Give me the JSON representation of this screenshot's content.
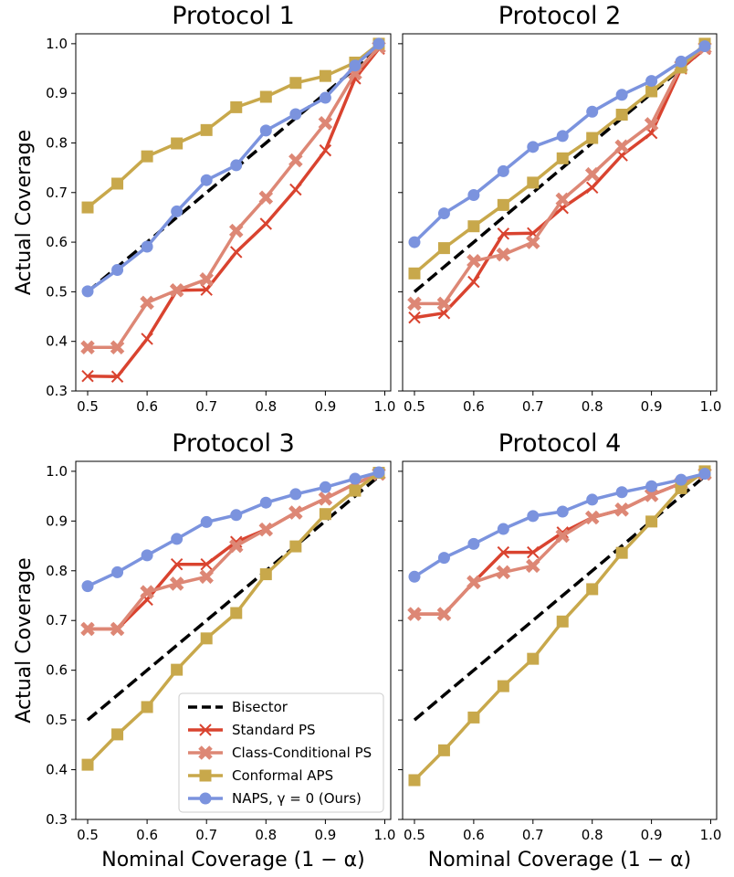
{
  "chart_data": [
    {
      "type": "line",
      "title": "Protocol 1",
      "x": [
        0.5,
        0.55,
        0.6,
        0.65,
        0.7,
        0.75,
        0.8,
        0.85,
        0.9,
        0.95,
        0.99
      ],
      "xlim": [
        0.48,
        1.01
      ],
      "ylim": [
        0.3,
        1.02
      ],
      "xticks": [
        "0.5",
        "0.6",
        "0.7",
        "0.8",
        "0.9",
        "1.0"
      ],
      "yticks": [
        "0.3",
        "0.4",
        "0.5",
        "0.6",
        "0.7",
        "0.8",
        "0.9",
        "1.0"
      ],
      "xlabel": "",
      "ylabel": "Actual Coverage",
      "series": [
        {
          "key": "bisector",
          "values": [
            0.5,
            0.55,
            0.6,
            0.65,
            0.7,
            0.75,
            0.8,
            0.85,
            0.9,
            0.95,
            0.99
          ]
        },
        {
          "key": "standard",
          "values": [
            0.33,
            0.329,
            0.405,
            0.503,
            0.504,
            0.58,
            0.637,
            0.706,
            0.785,
            0.93,
            0.99
          ]
        },
        {
          "key": "classcond",
          "values": [
            0.388,
            0.388,
            0.478,
            0.503,
            0.525,
            0.623,
            0.69,
            0.765,
            0.84,
            0.94,
            0.993
          ]
        },
        {
          "key": "aps",
          "values": [
            0.67,
            0.718,
            0.773,
            0.799,
            0.826,
            0.872,
            0.893,
            0.921,
            0.935,
            0.962,
            1.0
          ]
        },
        {
          "key": "naps",
          "values": [
            0.501,
            0.544,
            0.591,
            0.662,
            0.725,
            0.755,
            0.825,
            0.858,
            0.891,
            0.956,
            1.0
          ]
        }
      ]
    },
    {
      "type": "line",
      "title": "Protocol 2",
      "x": [
        0.5,
        0.55,
        0.6,
        0.65,
        0.7,
        0.75,
        0.8,
        0.85,
        0.9,
        0.95,
        0.99
      ],
      "xlim": [
        0.48,
        1.01
      ],
      "ylim": [
        0.3,
        1.02
      ],
      "xticks": [
        "0.5",
        "0.6",
        "0.7",
        "0.8",
        "0.9",
        "1.0"
      ],
      "yticks": [],
      "xlabel": "",
      "ylabel": "",
      "series": [
        {
          "key": "bisector",
          "values": [
            0.5,
            0.55,
            0.6,
            0.65,
            0.7,
            0.75,
            0.8,
            0.85,
            0.9,
            0.95,
            0.99
          ]
        },
        {
          "key": "standard",
          "values": [
            0.448,
            0.457,
            0.52,
            0.617,
            0.618,
            0.669,
            0.71,
            0.775,
            0.82,
            0.95,
            0.99
          ]
        },
        {
          "key": "classcond",
          "values": [
            0.476,
            0.476,
            0.562,
            0.575,
            0.6,
            0.686,
            0.737,
            0.793,
            0.838,
            0.955,
            0.992
          ]
        },
        {
          "key": "aps",
          "values": [
            0.537,
            0.588,
            0.632,
            0.675,
            0.72,
            0.769,
            0.81,
            0.857,
            0.904,
            0.952,
            1.0
          ]
        },
        {
          "key": "naps",
          "values": [
            0.6,
            0.658,
            0.695,
            0.743,
            0.792,
            0.814,
            0.863,
            0.897,
            0.925,
            0.964,
            0.995
          ]
        }
      ]
    },
    {
      "type": "line",
      "title": "Protocol 3",
      "x": [
        0.5,
        0.55,
        0.6,
        0.65,
        0.7,
        0.75,
        0.8,
        0.85,
        0.9,
        0.95,
        0.99
      ],
      "xlim": [
        0.48,
        1.01
      ],
      "ylim": [
        0.3,
        1.02
      ],
      "xticks": [
        "0.5",
        "0.6",
        "0.7",
        "0.8",
        "0.9",
        "1.0"
      ],
      "yticks": [
        "0.3",
        "0.4",
        "0.5",
        "0.6",
        "0.7",
        "0.8",
        "0.9",
        "1.0"
      ],
      "xlabel": "Nominal Coverage (1 − α)",
      "ylabel": "Actual Coverage",
      "series": [
        {
          "key": "bisector",
          "values": [
            0.5,
            0.55,
            0.6,
            0.65,
            0.7,
            0.75,
            0.8,
            0.85,
            0.9,
            0.95,
            0.99
          ]
        },
        {
          "key": "standard",
          "values": [
            0.683,
            0.683,
            0.742,
            0.813,
            0.813,
            0.858,
            0.883,
            0.917,
            0.945,
            0.975,
            0.995
          ]
        },
        {
          "key": "classcond",
          "values": [
            0.683,
            0.683,
            0.757,
            0.774,
            0.788,
            0.85,
            0.883,
            0.917,
            0.945,
            0.975,
            0.995
          ]
        },
        {
          "key": "aps",
          "values": [
            0.41,
            0.471,
            0.526,
            0.601,
            0.664,
            0.715,
            0.793,
            0.849,
            0.914,
            0.961,
            0.997
          ]
        },
        {
          "key": "naps",
          "values": [
            0.769,
            0.797,
            0.831,
            0.864,
            0.898,
            0.912,
            0.937,
            0.954,
            0.968,
            0.985,
            0.998
          ]
        }
      ]
    },
    {
      "type": "line",
      "title": "Protocol 4",
      "x": [
        0.5,
        0.55,
        0.6,
        0.65,
        0.7,
        0.75,
        0.8,
        0.85,
        0.9,
        0.95,
        0.99
      ],
      "xlim": [
        0.48,
        1.01
      ],
      "ylim": [
        0.3,
        1.02
      ],
      "xticks": [
        "0.5",
        "0.6",
        "0.7",
        "0.8",
        "0.9",
        "1.0"
      ],
      "yticks": [],
      "xlabel": "Nominal Coverage (1 − α)",
      "ylabel": "",
      "series": [
        {
          "key": "bisector",
          "values": [
            0.5,
            0.55,
            0.6,
            0.65,
            0.7,
            0.75,
            0.8,
            0.85,
            0.9,
            0.95,
            0.99
          ]
        },
        {
          "key": "standard",
          "values": [
            0.713,
            0.713,
            0.777,
            0.837,
            0.837,
            0.877,
            0.907,
            0.923,
            0.952,
            0.976,
            0.995
          ]
        },
        {
          "key": "classcond",
          "values": [
            0.713,
            0.713,
            0.777,
            0.797,
            0.81,
            0.87,
            0.907,
            0.923,
            0.952,
            0.976,
            0.995
          ]
        },
        {
          "key": "aps",
          "values": [
            0.379,
            0.439,
            0.505,
            0.568,
            0.623,
            0.698,
            0.763,
            0.836,
            0.899,
            0.966,
            1.0
          ]
        },
        {
          "key": "naps",
          "values": [
            0.788,
            0.826,
            0.854,
            0.884,
            0.91,
            0.919,
            0.943,
            0.958,
            0.97,
            0.983,
            0.995
          ]
        }
      ]
    }
  ],
  "series_styles": {
    "bisector": {
      "name": "Bisector",
      "color": "#000000",
      "marker": "none",
      "dash": true
    },
    "standard": {
      "name": "Standard PS",
      "color": "#d9432f",
      "marker": "x"
    },
    "classcond": {
      "name": "Class-Conditional PS",
      "color": "#dd8775",
      "marker": "X"
    },
    "aps": {
      "name": "Conformal APS",
      "color": "#c8a84b",
      "marker": "square"
    },
    "naps": {
      "name": "NAPS, γ = 0 (Ours)",
      "color": "#7b93de",
      "marker": "circle"
    }
  },
  "legend": {
    "placement": "panel 3, lower-right",
    "entries": [
      "Bisector",
      "Standard PS",
      "Class-Conditional PS",
      "Conformal APS",
      "NAPS, γ = 0 (Ours)"
    ]
  }
}
